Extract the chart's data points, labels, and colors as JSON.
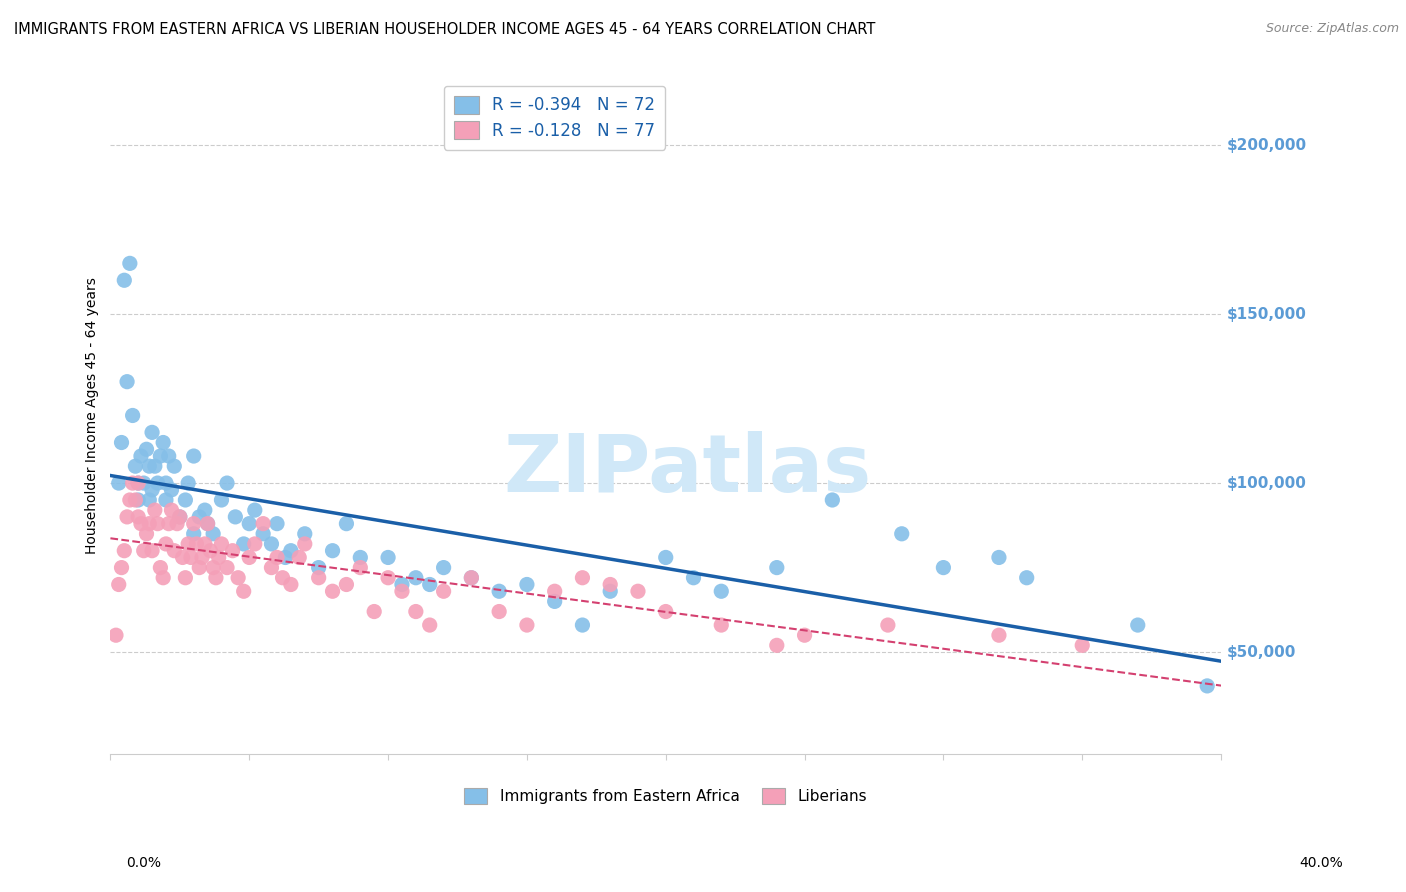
{
  "title": "IMMIGRANTS FROM EASTERN AFRICA VS LIBERIAN HOUSEHOLDER INCOME AGES 45 - 64 YEARS CORRELATION CHART",
  "source": "Source: ZipAtlas.com",
  "ylabel": "Householder Income Ages 45 - 64 years",
  "xlim": [
    0.0,
    40.0
  ],
  "ylim": [
    20000,
    220000
  ],
  "yticks": [
    50000,
    100000,
    150000,
    200000
  ],
  "ytick_labels": [
    "$50,000",
    "$100,000",
    "$150,000",
    "$200,000"
  ],
  "xticks": [
    0.0,
    5.0,
    10.0,
    15.0,
    20.0,
    25.0,
    30.0,
    35.0,
    40.0
  ],
  "xtick_labels": [
    "",
    "",
    "",
    "",
    "",
    "",
    "",
    "",
    ""
  ],
  "series": [
    {
      "name": "Immigrants from Eastern Africa",
      "R": -0.394,
      "N": 72,
      "color": "#85bfe8",
      "line_color": "#1a5fa8",
      "x": [
        0.3,
        0.4,
        0.5,
        0.6,
        0.7,
        0.8,
        0.9,
        1.0,
        1.0,
        1.1,
        1.2,
        1.3,
        1.4,
        1.4,
        1.5,
        1.5,
        1.6,
        1.7,
        1.8,
        1.9,
        2.0,
        2.0,
        2.1,
        2.2,
        2.3,
        2.5,
        2.7,
        2.8,
        3.0,
        3.0,
        3.2,
        3.4,
        3.5,
        3.7,
        4.0,
        4.2,
        4.5,
        4.8,
        5.0,
        5.2,
        5.5,
        5.8,
        6.0,
        6.3,
        6.5,
        7.0,
        7.5,
        8.0,
        8.5,
        9.0,
        10.0,
        10.5,
        11.0,
        11.5,
        12.0,
        13.0,
        14.0,
        15.0,
        16.0,
        17.0,
        18.0,
        20.0,
        21.0,
        22.0,
        24.0,
        26.0,
        28.5,
        30.0,
        32.0,
        33.0,
        37.0,
        39.5
      ],
      "y": [
        100000,
        112000,
        160000,
        130000,
        165000,
        120000,
        105000,
        100000,
        95000,
        108000,
        100000,
        110000,
        105000,
        95000,
        98000,
        115000,
        105000,
        100000,
        108000,
        112000,
        100000,
        95000,
        108000,
        98000,
        105000,
        90000,
        95000,
        100000,
        108000,
        85000,
        90000,
        92000,
        88000,
        85000,
        95000,
        100000,
        90000,
        82000,
        88000,
        92000,
        85000,
        82000,
        88000,
        78000,
        80000,
        85000,
        75000,
        80000,
        88000,
        78000,
        78000,
        70000,
        72000,
        70000,
        75000,
        72000,
        68000,
        70000,
        65000,
        58000,
        68000,
        78000,
        72000,
        68000,
        75000,
        95000,
        85000,
        75000,
        78000,
        72000,
        58000,
        40000
      ]
    },
    {
      "name": "Liberians",
      "R": -0.128,
      "N": 77,
      "color": "#f4a0b8",
      "line_color": "#d44070",
      "x": [
        0.2,
        0.3,
        0.4,
        0.5,
        0.6,
        0.7,
        0.8,
        0.9,
        1.0,
        1.0,
        1.1,
        1.2,
        1.3,
        1.4,
        1.5,
        1.6,
        1.7,
        1.8,
        1.9,
        2.0,
        2.1,
        2.2,
        2.3,
        2.4,
        2.5,
        2.6,
        2.7,
        2.8,
        2.9,
        3.0,
        3.1,
        3.2,
        3.3,
        3.4,
        3.5,
        3.6,
        3.7,
        3.8,
        3.9,
        4.0,
        4.2,
        4.4,
        4.6,
        4.8,
        5.0,
        5.2,
        5.5,
        5.8,
        6.0,
        6.2,
        6.5,
        6.8,
        7.0,
        7.5,
        8.0,
        8.5,
        9.0,
        9.5,
        10.0,
        10.5,
        11.0,
        11.5,
        12.0,
        13.0,
        14.0,
        15.0,
        16.0,
        17.0,
        18.0,
        19.0,
        20.0,
        22.0,
        24.0,
        25.0,
        28.0,
        32.0,
        35.0
      ],
      "y": [
        55000,
        70000,
        75000,
        80000,
        90000,
        95000,
        100000,
        95000,
        100000,
        90000,
        88000,
        80000,
        85000,
        88000,
        80000,
        92000,
        88000,
        75000,
        72000,
        82000,
        88000,
        92000,
        80000,
        88000,
        90000,
        78000,
        72000,
        82000,
        78000,
        88000,
        82000,
        75000,
        78000,
        82000,
        88000,
        80000,
        75000,
        72000,
        78000,
        82000,
        75000,
        80000,
        72000,
        68000,
        78000,
        82000,
        88000,
        75000,
        78000,
        72000,
        70000,
        78000,
        82000,
        72000,
        68000,
        70000,
        75000,
        62000,
        72000,
        68000,
        62000,
        58000,
        68000,
        72000,
        62000,
        58000,
        68000,
        72000,
        70000,
        68000,
        62000,
        58000,
        52000,
        55000,
        58000,
        55000,
        52000
      ]
    }
  ],
  "legend_color": "#1a5fa8",
  "watermark_text": "ZIPatlas",
  "watermark_color": "#d0e8f8",
  "background_color": "#ffffff",
  "grid_color": "#cccccc",
  "title_fontsize": 10.5,
  "source_fontsize": 9,
  "ytick_color": "#5b9bd5"
}
